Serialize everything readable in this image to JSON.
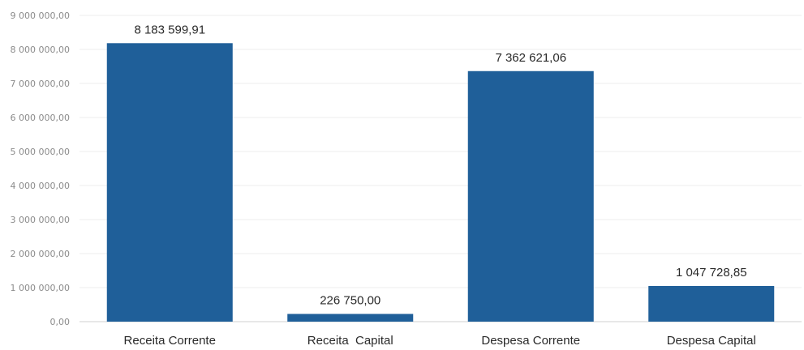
{
  "chart_data": {
    "type": "bar",
    "title": "",
    "xlabel": "",
    "ylabel": "",
    "categories": [
      "Receita Corrente",
      "Receita  Capital",
      "Despesa Corrente",
      "Despesa Capital"
    ],
    "values": [
      8183599.91,
      226750.0,
      7362621.06,
      1047728.85
    ],
    "value_labels": [
      "8 183 599,91",
      "226 750,00",
      "7 362 621,06",
      "1 047 728,85"
    ],
    "ylim": [
      0,
      9000000
    ],
    "yticks": [
      0,
      1000000,
      2000000,
      3000000,
      4000000,
      5000000,
      6000000,
      7000000,
      8000000,
      9000000
    ],
    "ytick_labels": [
      "0,00",
      "1 000 000,00",
      "2 000 000,00",
      "3 000 000,00",
      "4 000 000,00",
      "5 000 000,00",
      "6 000 000,00",
      "7 000 000,00",
      "8 000 000,00",
      "9 000 000,00"
    ],
    "grid": true,
    "legend": "none",
    "bar_color": "#1f5f99"
  }
}
